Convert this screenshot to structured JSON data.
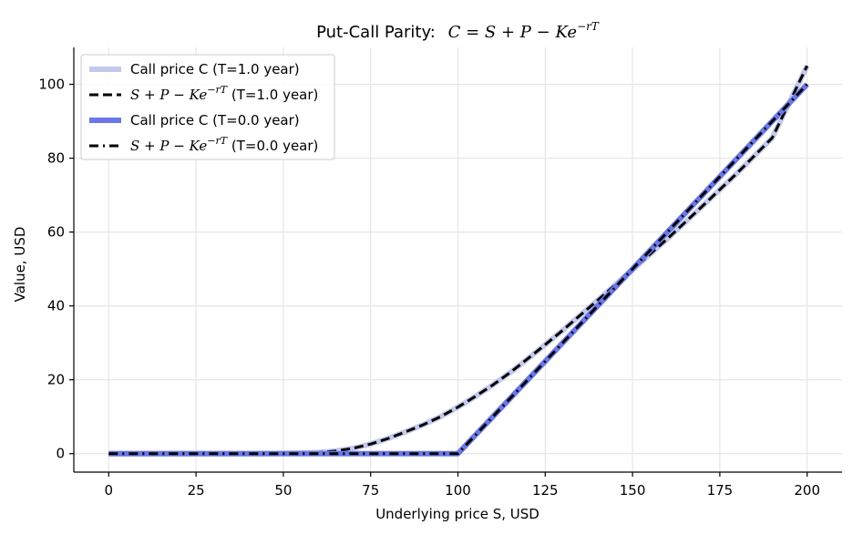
{
  "chart_data": {
    "type": "line",
    "title": "Put-Call Parity:",
    "title_formula": "C = S + P − Ke^{−rT}",
    "xlabel": "Underlying price S, USD",
    "ylabel": "Value, USD",
    "xlim": [
      -10,
      210
    ],
    "ylim": [
      -5,
      110
    ],
    "xticks": [
      0,
      25,
      50,
      75,
      100,
      125,
      150,
      175,
      200
    ],
    "yticks": [
      0,
      20,
      40,
      60,
      80,
      100
    ],
    "grid": true,
    "legend_position": "top-left",
    "strike": 100,
    "series": [
      {
        "name": "Call price  C (T=1.0 year)",
        "style": "solid-wide",
        "color": "#c3c9ec",
        "x": [
          0,
          40,
          50,
          60,
          65,
          70,
          75,
          80,
          85,
          90,
          95,
          100,
          105,
          110,
          115,
          120,
          125,
          130,
          140,
          150,
          160,
          170,
          180,
          190,
          200
        ],
        "y": [
          0,
          0.01,
          0.05,
          0.32,
          0.72,
          1.45,
          2.6,
          4.1,
          5.9,
          7.8,
          10.0,
          12.6,
          15.5,
          18.6,
          22.0,
          25.7,
          29.5,
          33.4,
          41.5,
          49.8,
          58.2,
          67.0,
          76.0,
          85.5,
          105.0
        ]
      },
      {
        "name": "S + P − Ke^{−rT} (T=1.0 year)",
        "style": "dashed",
        "color": "#000000",
        "x": [
          0,
          40,
          50,
          60,
          65,
          70,
          75,
          80,
          85,
          90,
          95,
          100,
          105,
          110,
          115,
          120,
          125,
          130,
          140,
          150,
          160,
          170,
          180,
          190,
          200
        ],
        "y": [
          0,
          0.01,
          0.05,
          0.32,
          0.72,
          1.45,
          2.6,
          4.1,
          5.9,
          7.8,
          10.0,
          12.6,
          15.5,
          18.6,
          22.0,
          25.7,
          29.5,
          33.4,
          41.5,
          49.8,
          58.2,
          67.0,
          76.0,
          85.5,
          105.0
        ]
      },
      {
        "name": "Call price  C (T=0.0 year)",
        "style": "solid-wide",
        "color": "#6a78e8",
        "x": [
          0,
          100,
          200
        ],
        "y": [
          0,
          0,
          100
        ]
      },
      {
        "name": "S + P − Ke^{−rT} (T=0.0 year)",
        "style": "dashdot",
        "color": "#000000",
        "x": [
          0,
          100,
          200
        ],
        "y": [
          0,
          0,
          100
        ]
      }
    ]
  }
}
